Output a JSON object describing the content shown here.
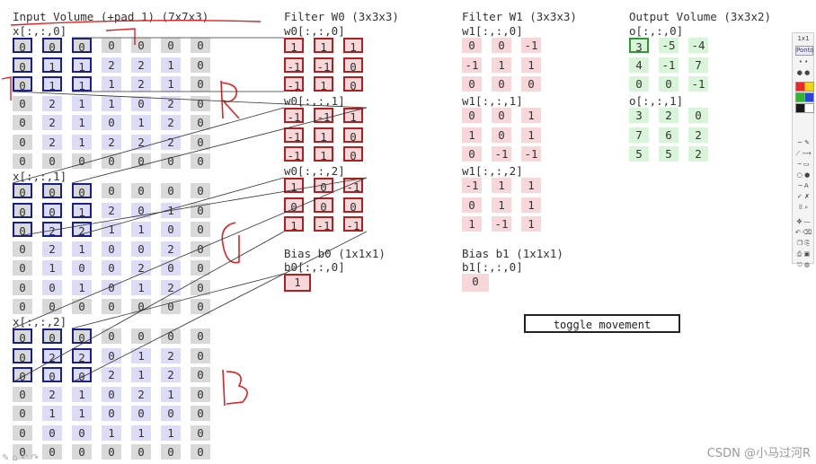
{
  "input": {
    "title": "Input Volume (+pad 1) (7x7x3)",
    "slices": [
      {
        "label": "x[:,:,0]",
        "rows": [
          [
            "0",
            "0",
            "0",
            "0",
            "0",
            "0",
            "0"
          ],
          [
            "0",
            "1",
            "1",
            "2",
            "2",
            "1",
            "0"
          ],
          [
            "0",
            "1",
            "1",
            "1",
            "2",
            "1",
            "0"
          ],
          [
            "0",
            "2",
            "1",
            "1",
            "0",
            "2",
            "0"
          ],
          [
            "0",
            "2",
            "1",
            "0",
            "1",
            "2",
            "0"
          ],
          [
            "0",
            "2",
            "1",
            "2",
            "2",
            "2",
            "0"
          ],
          [
            "0",
            "0",
            "0",
            "0",
            "0",
            "0",
            "0"
          ]
        ]
      },
      {
        "label": "x[:,:,1]",
        "rows": [
          [
            "0",
            "0",
            "0",
            "0",
            "0",
            "0",
            "0"
          ],
          [
            "0",
            "0",
            "1",
            "2",
            "0",
            "1",
            "0"
          ],
          [
            "0",
            "2",
            "2",
            "1",
            "1",
            "0",
            "0"
          ],
          [
            "0",
            "2",
            "1",
            "0",
            "0",
            "2",
            "0"
          ],
          [
            "0",
            "1",
            "0",
            "0",
            "2",
            "0",
            "0"
          ],
          [
            "0",
            "0",
            "1",
            "0",
            "1",
            "2",
            "0"
          ],
          [
            "0",
            "0",
            "0",
            "0",
            "0",
            "0",
            "0"
          ]
        ]
      },
      {
        "label": "x[:,:,2]",
        "rows": [
          [
            "0",
            "0",
            "0",
            "0",
            "0",
            "0",
            "0"
          ],
          [
            "0",
            "2",
            "2",
            "0",
            "1",
            "2",
            "0"
          ],
          [
            "0",
            "0",
            "0",
            "2",
            "1",
            "2",
            "0"
          ],
          [
            "0",
            "2",
            "1",
            "0",
            "2",
            "1",
            "0"
          ],
          [
            "0",
            "1",
            "1",
            "0",
            "0",
            "0",
            "0"
          ],
          [
            "0",
            "0",
            "0",
            "1",
            "1",
            "1",
            "0"
          ],
          [
            "0",
            "0",
            "0",
            "0",
            "0",
            "0",
            "0"
          ]
        ]
      }
    ]
  },
  "filter_w0": {
    "title": "Filter W0 (3x3x3)",
    "slices": [
      {
        "label": "w0[:,:,0]",
        "rows": [
          [
            "1",
            "1",
            "1"
          ],
          [
            "-1",
            "-1",
            "0"
          ],
          [
            "-1",
            "1",
            "0"
          ]
        ]
      },
      {
        "label": "w0[:,:,1]",
        "rows": [
          [
            "-1",
            "-1",
            "1"
          ],
          [
            "-1",
            "1",
            "0"
          ],
          [
            "-1",
            "1",
            "0"
          ]
        ]
      },
      {
        "label": "w0[:,:,2]",
        "rows": [
          [
            "1",
            "0",
            "-1"
          ],
          [
            "0",
            "0",
            "0"
          ],
          [
            "1",
            "-1",
            "-1"
          ]
        ]
      }
    ],
    "bias_title": "Bias b0 (1x1x1)",
    "bias_label": "b0[:,:,0]",
    "bias_value": "1"
  },
  "filter_w1": {
    "title": "Filter W1 (3x3x3)",
    "slices": [
      {
        "label": "w1[:,:,0]",
        "rows": [
          [
            "0",
            "0",
            "-1"
          ],
          [
            "-1",
            "1",
            "1"
          ],
          [
            "0",
            "0",
            "0"
          ]
        ]
      },
      {
        "label": "w1[:,:,1]",
        "rows": [
          [
            "0",
            "0",
            "1"
          ],
          [
            "1",
            "0",
            "1"
          ],
          [
            "0",
            "-1",
            "-1"
          ]
        ]
      },
      {
        "label": "w1[:,:,2]",
        "rows": [
          [
            "-1",
            "1",
            "1"
          ],
          [
            "0",
            "1",
            "1"
          ],
          [
            "1",
            "-1",
            "1"
          ]
        ]
      }
    ],
    "bias_title": "Bias b1 (1x1x1)",
    "bias_label": "b1[:,:,0]",
    "bias_value": "0"
  },
  "output": {
    "title": "Output Volume (3x3x2)",
    "slices": [
      {
        "label": "o[:,:,0]",
        "rows": [
          [
            "3",
            "-5",
            "-4"
          ],
          [
            "4",
            "-1",
            "7"
          ],
          [
            "0",
            "0",
            "-1"
          ]
        ]
      },
      {
        "label": "o[:,:,1]",
        "rows": [
          [
            "3",
            "2",
            "0"
          ],
          [
            "7",
            "6",
            "2"
          ],
          [
            "5",
            "5",
            "2"
          ]
        ]
      }
    ]
  },
  "toggle_label": "toggle movement",
  "toolbar": {
    "header": "1x1",
    "button": "Ponto",
    "swatches": [
      "#e52b2b",
      "#f5d21a",
      "#2fb52f",
      "#2a43d8",
      "#1a1a1a",
      "#ffffff"
    ]
  },
  "watermark": "CSDN @小马过河R"
}
